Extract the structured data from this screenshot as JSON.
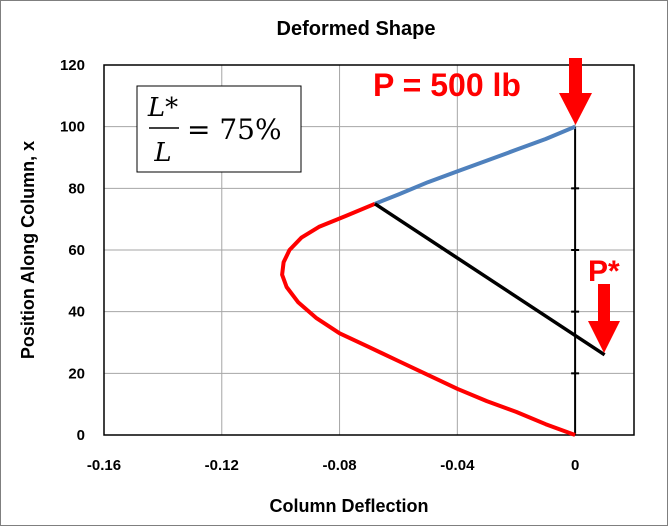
{
  "chart_data": {
    "type": "line",
    "title": "Deformed Shape",
    "xlabel": "Column Deflection",
    "ylabel": "Position Along Column, x",
    "xlim": [
      -0.16,
      0.02
    ],
    "ylim": [
      0,
      120
    ],
    "xticks": [
      "-0.16",
      "-0.12",
      "-0.08",
      "-0.04",
      "0"
    ],
    "yticks": [
      "0",
      "20",
      "40",
      "60",
      "80",
      "100",
      "120"
    ],
    "grid": true,
    "series": [
      {
        "color": "#ff0000",
        "x": [
          0,
          -0.01,
          -0.02,
          -0.03,
          -0.04,
          -0.05,
          -0.06,
          -0.07,
          -0.08,
          -0.088,
          -0.094,
          -0.098,
          -0.0995,
          -0.099,
          -0.097,
          -0.093,
          -0.087,
          -0.078,
          -0.068
        ],
        "y": [
          0,
          3.5,
          7.5,
          11,
          15,
          19.5,
          24,
          28.5,
          33,
          38,
          43,
          48,
          52,
          56,
          60,
          64,
          67.5,
          71,
          75
        ]
      },
      {
        "color": "#4f81bd",
        "x": [
          -0.068,
          -0.06,
          -0.05,
          -0.04,
          -0.03,
          -0.02,
          -0.01,
          0
        ],
        "y": [
          75,
          78,
          82,
          85.5,
          89,
          92.5,
          96,
          100
        ]
      },
      {
        "color": "#000000",
        "x": [
          -0.068,
          0.01
        ],
        "y": [
          75,
          26
        ]
      },
      {
        "color": "#000000",
        "x": [
          0,
          0
        ],
        "y": [
          0,
          100
        ]
      }
    ]
  },
  "annotations": {
    "ratio_num": "L*",
    "ratio_den": "L",
    "ratio_eq": "= 75%",
    "top_load": "P = 500 lb",
    "lever_load": "P*"
  }
}
